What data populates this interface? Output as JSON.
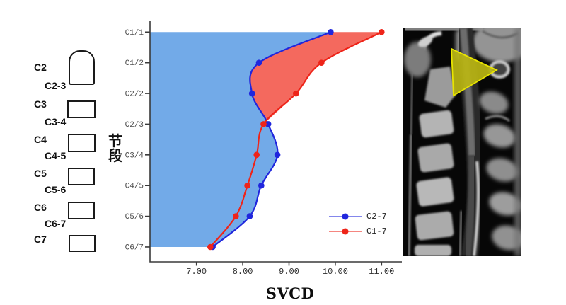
{
  "y_axis_title": "节段",
  "vertebra_diagram": {
    "items": [
      {
        "label": "C2",
        "shape": "dome"
      },
      {
        "label": "C2-3",
        "shape": "none"
      },
      {
        "label": "C3",
        "shape": "rect"
      },
      {
        "label": "C3-4",
        "shape": "none"
      },
      {
        "label": "C4",
        "shape": "rect"
      },
      {
        "label": "C4-5",
        "shape": "none"
      },
      {
        "label": "C5",
        "shape": "rect"
      },
      {
        "label": "C5-6",
        "shape": "none"
      },
      {
        "label": "C6",
        "shape": "rect"
      },
      {
        "label": "C6-7",
        "shape": "none"
      },
      {
        "label": "C7",
        "shape": "rect"
      }
    ]
  },
  "chart_data": {
    "type": "line",
    "orientation": "horizontal-categories",
    "smoothing": "spline",
    "title": "",
    "xlabel": "SVCD",
    "ylabel": "节段",
    "categories": [
      "C1/1",
      "C1/2",
      "C2/2",
      "C2/3",
      "C3/4",
      "C4/5",
      "C5/6",
      "C6/7"
    ],
    "x_ticks": [
      7,
      8,
      9,
      10,
      11
    ],
    "x_tick_labels": [
      "7.00",
      "8.00",
      "9.00",
      "10.00",
      "11.00"
    ],
    "xlim": [
      6.0,
      11.45
    ],
    "grid": false,
    "legend_position": "lower-right",
    "series": [
      {
        "name": "C2-7",
        "line_color": "#2026dd",
        "fill_color": "#72aae8",
        "values": [
          9.9,
          8.35,
          8.2,
          8.55,
          8.75,
          8.4,
          8.15,
          7.35
        ],
        "fill_mode": "area-left-of-curve"
      },
      {
        "name": "C1-7",
        "line_color": "#ee2419",
        "fill_color": "#f4695e",
        "values": [
          11.0,
          9.7,
          9.15,
          8.45,
          8.3,
          8.1,
          7.85,
          7.3
        ],
        "fill_mode": "between-curves-rows-C1/1-to-C2/3"
      }
    ]
  },
  "mri": {
    "content": "sagittal cervical spine MRI",
    "marker": {
      "shape": "triangle-right",
      "fill": "#b9b513",
      "stroke": "#e8e400"
    }
  }
}
